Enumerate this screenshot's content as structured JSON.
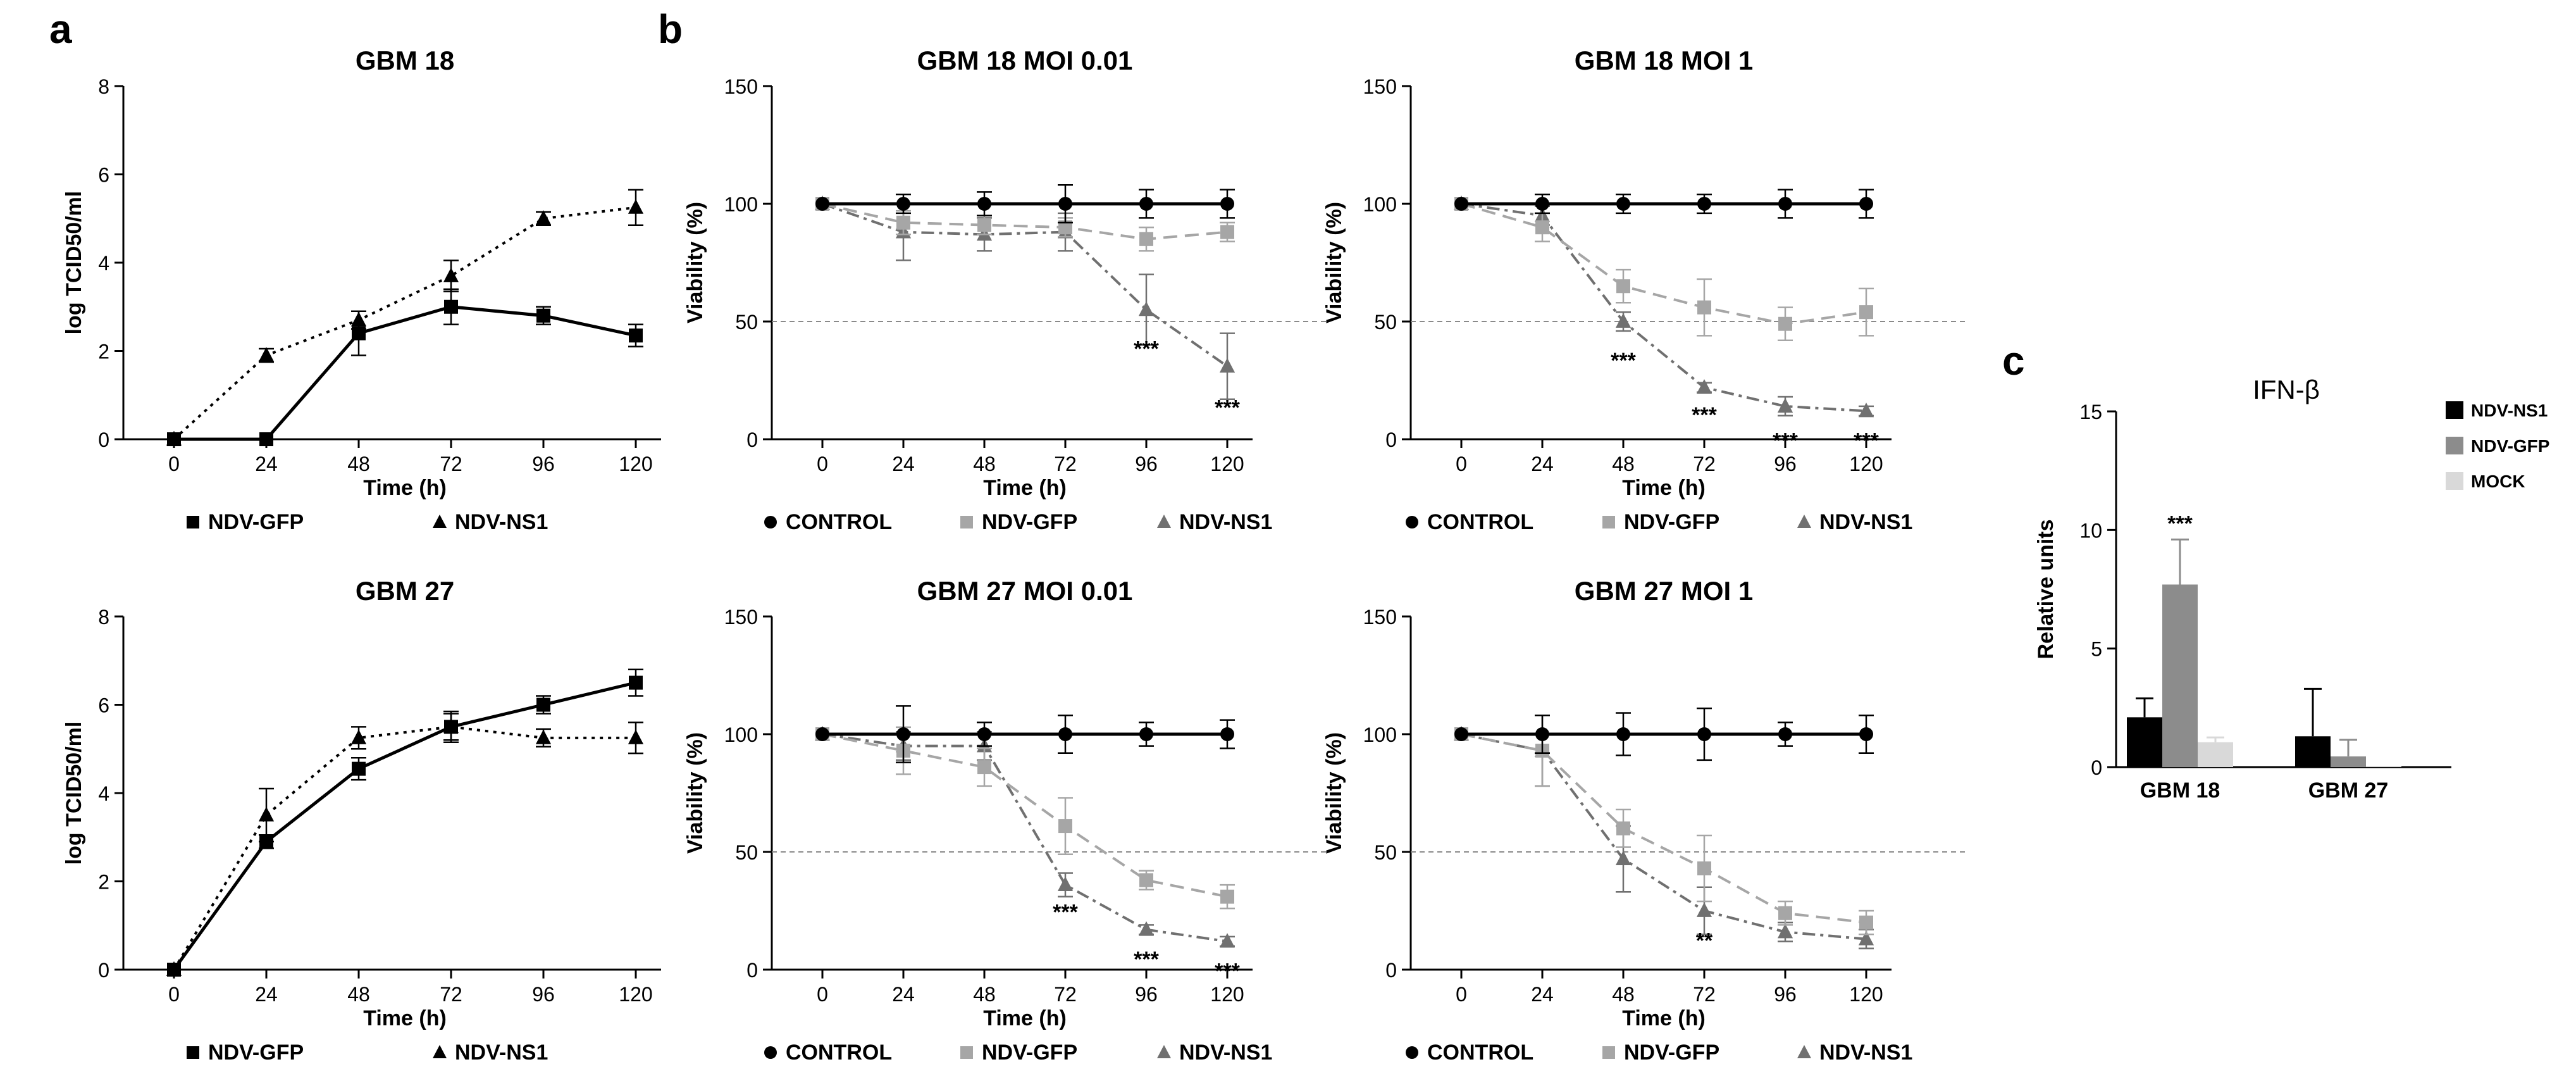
{
  "figure": {
    "panel_labels": [
      "a",
      "b",
      "c"
    ]
  },
  "chart_data": [
    {
      "id": "a1",
      "panel": "a",
      "type": "line",
      "title": "GBM 18",
      "xlabel": "Time (h)",
      "ylabel": "log TCID50/ml",
      "x": [
        0,
        24,
        48,
        72,
        96,
        120
      ],
      "xlim": [
        0,
        120
      ],
      "ylim": [
        0,
        8
      ],
      "yticks": [
        0,
        2,
        4,
        6,
        8
      ],
      "grid": false,
      "legend": "bottom",
      "reference_line": null,
      "series": [
        {
          "name": "NDV-GFP",
          "marker": "square",
          "line": "solid",
          "color": "#000000",
          "values": [
            0,
            0,
            2.4,
            3.0,
            2.8,
            2.35
          ],
          "errors": [
            0,
            0,
            0.5,
            0.4,
            0.2,
            0.25
          ]
        },
        {
          "name": "NDV-NS1",
          "marker": "triangle",
          "line": "dotted",
          "color": "#000000",
          "values": [
            0,
            1.9,
            2.7,
            3.7,
            5.0,
            5.25
          ],
          "errors": [
            0,
            0.15,
            0.2,
            0.35,
            0.15,
            0.4
          ]
        }
      ],
      "annotations": []
    },
    {
      "id": "a2",
      "panel": null,
      "type": "line",
      "title": "GBM 27",
      "xlabel": "Time (h)",
      "ylabel": "log TCID50/ml",
      "x": [
        0,
        24,
        48,
        72,
        96,
        120
      ],
      "xlim": [
        0,
        120
      ],
      "ylim": [
        0,
        8
      ],
      "yticks": [
        0,
        2,
        4,
        6,
        8
      ],
      "grid": false,
      "legend": "bottom",
      "reference_line": null,
      "series": [
        {
          "name": "NDV-GFP",
          "marker": "square",
          "line": "solid",
          "color": "#000000",
          "values": [
            0,
            2.9,
            4.55,
            5.5,
            6.0,
            6.5
          ],
          "errors": [
            0,
            0.15,
            0.25,
            0.3,
            0.2,
            0.3
          ]
        },
        {
          "name": "NDV-NS1",
          "marker": "triangle",
          "line": "dotted",
          "color": "#000000",
          "values": [
            0,
            3.5,
            5.25,
            5.5,
            5.25,
            5.25
          ],
          "errors": [
            0,
            0.6,
            0.25,
            0.35,
            0.2,
            0.35
          ]
        }
      ],
      "annotations": []
    },
    {
      "id": "b1",
      "panel": "b",
      "type": "line",
      "title": "GBM 18 MOI 0.01",
      "xlabel": "Time (h)",
      "ylabel": "Viability (%)",
      "x": [
        0,
        24,
        48,
        72,
        96,
        120
      ],
      "xlim": [
        0,
        120
      ],
      "ylim": [
        0,
        150
      ],
      "yticks": [
        0,
        50,
        100,
        150
      ],
      "grid": false,
      "legend": "bottom",
      "reference_line": 50,
      "series": [
        {
          "name": "CONTROL",
          "marker": "circle",
          "line": "solid",
          "color": "#000000",
          "values": [
            100,
            100,
            100,
            100,
            100,
            100
          ],
          "errors": [
            0,
            4,
            5,
            8,
            6,
            6
          ]
        },
        {
          "name": "NDV-GFP",
          "marker": "square",
          "line": "dashed",
          "color": "#a6a6a6",
          "values": [
            100,
            92,
            91,
            90,
            85,
            88
          ],
          "errors": [
            0,
            5,
            4,
            4,
            5,
            4
          ]
        },
        {
          "name": "NDV-NS1",
          "marker": "triangle",
          "line": "dashdot",
          "color": "#707070",
          "values": [
            100,
            88,
            87,
            88,
            55,
            31
          ],
          "errors": [
            0,
            12,
            7,
            8,
            15,
            14
          ]
        }
      ],
      "annotations": [
        {
          "x": 96,
          "y": 38,
          "text": "***"
        },
        {
          "x": 120,
          "y": 13,
          "text": "***"
        }
      ]
    },
    {
      "id": "b2",
      "panel": null,
      "type": "line",
      "title": "GBM 18 MOI 1",
      "xlabel": "Time (h)",
      "ylabel": "Viability (%)",
      "x": [
        0,
        24,
        48,
        72,
        96,
        120
      ],
      "xlim": [
        0,
        120
      ],
      "ylim": [
        0,
        150
      ],
      "yticks": [
        0,
        50,
        100,
        150
      ],
      "grid": false,
      "legend": "bottom",
      "reference_line": 50,
      "series": [
        {
          "name": "CONTROL",
          "marker": "circle",
          "line": "solid",
          "color": "#000000",
          "values": [
            100,
            100,
            100,
            100,
            100,
            100
          ],
          "errors": [
            0,
            4,
            4,
            4,
            6,
            6
          ]
        },
        {
          "name": "NDV-GFP",
          "marker": "square",
          "line": "dashed",
          "color": "#a6a6a6",
          "values": [
            100,
            90,
            65,
            56,
            49,
            54
          ],
          "errors": [
            0,
            6,
            7,
            12,
            7,
            10
          ]
        },
        {
          "name": "NDV-NS1",
          "marker": "triangle",
          "line": "dashdot",
          "color": "#707070",
          "values": [
            100,
            95,
            50,
            22,
            14,
            12
          ],
          "errors": [
            0,
            4,
            4,
            2,
            4,
            2
          ]
        }
      ],
      "annotations": [
        {
          "x": 48,
          "y": 33,
          "text": "***"
        },
        {
          "x": 72,
          "y": 10,
          "text": "***"
        },
        {
          "x": 96,
          "y": -1,
          "text": "***"
        },
        {
          "x": 120,
          "y": -1,
          "text": "***"
        }
      ]
    },
    {
      "id": "b3",
      "panel": null,
      "type": "line",
      "title": "GBM 27 MOI 0.01",
      "xlabel": "Time (h)",
      "ylabel": "Viability (%)",
      "x": [
        0,
        24,
        48,
        72,
        96,
        120
      ],
      "xlim": [
        0,
        120
      ],
      "ylim": [
        0,
        150
      ],
      "yticks": [
        0,
        50,
        100,
        150
      ],
      "grid": false,
      "legend": "bottom",
      "reference_line": 50,
      "series": [
        {
          "name": "CONTROL",
          "marker": "circle",
          "line": "solid",
          "color": "#000000",
          "values": [
            100,
            100,
            100,
            100,
            100,
            100
          ],
          "errors": [
            0,
            12,
            5,
            8,
            5,
            6
          ]
        },
        {
          "name": "NDV-GFP",
          "marker": "square",
          "line": "dashed",
          "color": "#a6a6a6",
          "values": [
            100,
            93,
            86,
            61,
            38,
            31
          ],
          "errors": [
            0,
            10,
            8,
            12,
            4,
            5
          ]
        },
        {
          "name": "NDV-NS1",
          "marker": "triangle",
          "line": "dashdot",
          "color": "#707070",
          "values": [
            100,
            95,
            95,
            36,
            17,
            12
          ],
          "errors": [
            0,
            6,
            6,
            5,
            2,
            2
          ]
        }
      ],
      "annotations": [
        {
          "x": 72,
          "y": 24,
          "text": "***"
        },
        {
          "x": 96,
          "y": 4,
          "text": "***"
        },
        {
          "x": 120,
          "y": -1,
          "text": "***"
        }
      ]
    },
    {
      "id": "b4",
      "panel": null,
      "type": "line",
      "title": "GBM 27 MOI 1",
      "xlabel": "Time (h)",
      "ylabel": "Viability (%)",
      "x": [
        0,
        24,
        48,
        72,
        96,
        120
      ],
      "xlim": [
        0,
        120
      ],
      "ylim": [
        0,
        150
      ],
      "yticks": [
        0,
        50,
        100,
        150
      ],
      "grid": false,
      "legend": "bottom",
      "reference_line": 50,
      "series": [
        {
          "name": "CONTROL",
          "marker": "circle",
          "line": "solid",
          "color": "#000000",
          "values": [
            100,
            100,
            100,
            100,
            100,
            100
          ],
          "errors": [
            0,
            8,
            9,
            11,
            5,
            8
          ]
        },
        {
          "name": "NDV-GFP",
          "marker": "square",
          "line": "dashed",
          "color": "#a6a6a6",
          "values": [
            100,
            93,
            60,
            43,
            24,
            20
          ],
          "errors": [
            0,
            15,
            8,
            14,
            5,
            5
          ]
        },
        {
          "name": "NDV-NS1",
          "marker": "triangle",
          "line": "dashdot",
          "color": "#707070",
          "values": [
            100,
            93,
            47,
            25,
            16,
            13
          ],
          "errors": [
            0,
            15,
            14,
            10,
            4,
            4
          ]
        }
      ],
      "annotations": [
        {
          "x": 72,
          "y": 12,
          "text": "**"
        }
      ]
    },
    {
      "id": "c",
      "panel": "c",
      "type": "bar",
      "title": "IFN-β",
      "xlabel": "",
      "ylabel": "Relative units",
      "categories": [
        "GBM 18",
        "GBM 27"
      ],
      "ylim": [
        0,
        15
      ],
      "yticks": [
        0,
        5,
        10,
        15
      ],
      "grid": false,
      "legend": "top-right",
      "series": [
        {
          "name": "NDV-NS1",
          "color": "#000000",
          "values": [
            2.1,
            1.3
          ],
          "errors": [
            0.8,
            2.0
          ]
        },
        {
          "name": "NDV-GFP",
          "color": "#8c8c8c",
          "values": [
            7.7,
            0.45
          ],
          "errors": [
            1.9,
            0.7
          ]
        },
        {
          "name": "MOCK",
          "color": "#d9d9d9",
          "values": [
            1.05,
            0.05
          ],
          "errors": [
            0.2,
            0.0
          ]
        }
      ],
      "annotations": [
        {
          "category": "GBM 18",
          "series": "NDV-GFP",
          "text": "***"
        }
      ]
    }
  ]
}
